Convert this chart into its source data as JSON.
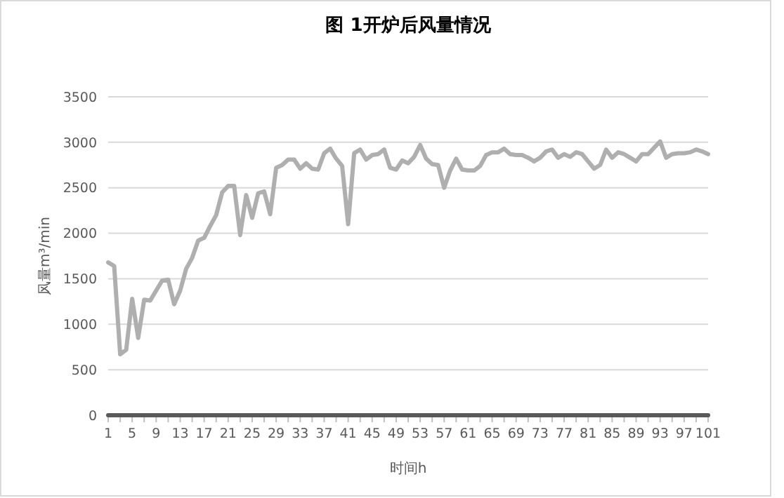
{
  "chart_data": {
    "type": "line",
    "title": "图 1开炉后风量情况",
    "xlabel": "时间h",
    "ylabel": "风量m³/min",
    "categories": [
      "1",
      null,
      null,
      null,
      "5",
      null,
      null,
      null,
      "9",
      null,
      null,
      null,
      "13",
      null,
      null,
      null,
      "17",
      null,
      null,
      null,
      "21",
      null,
      null,
      null,
      "25",
      null,
      null,
      null,
      "29",
      null,
      null,
      null,
      "33",
      null,
      null,
      null,
      "37",
      null,
      null,
      null,
      "41",
      null,
      null,
      null,
      "45",
      null,
      null,
      null,
      "49",
      null,
      null,
      null,
      "53",
      null,
      null,
      null,
      "57",
      null,
      null,
      null,
      "61",
      null,
      null,
      null,
      "65",
      null,
      null,
      null,
      "69",
      null,
      null,
      null,
      "73",
      null,
      null,
      null,
      "77",
      null,
      null,
      null,
      "81",
      null,
      null,
      null,
      "85",
      null,
      null,
      null,
      "89",
      null,
      null,
      null,
      "93",
      null,
      null,
      null,
      "97",
      null,
      null,
      null,
      "101"
    ],
    "series": [
      {
        "color": "#afafaf",
        "values": [
          1680,
          1640,
          670,
          720,
          1280,
          850,
          1270,
          1260,
          1370,
          1480,
          1490,
          1220,
          1370,
          1610,
          1730,
          1920,
          1950,
          2080,
          2200,
          2450,
          2520,
          2520,
          1980,
          2420,
          2170,
          2440,
          2460,
          2210,
          2720,
          2750,
          2810,
          2810,
          2710,
          2770,
          2710,
          2700,
          2880,
          2930,
          2820,
          2740,
          2100,
          2880,
          2920,
          2810,
          2860,
          2870,
          2920,
          2720,
          2700,
          2800,
          2770,
          2840,
          2970,
          2820,
          2760,
          2750,
          2500,
          2690,
          2820,
          2700,
          2690,
          2690,
          2740,
          2860,
          2890,
          2890,
          2930,
          2870,
          2860,
          2860,
          2830,
          2790,
          2830,
          2900,
          2920,
          2830,
          2870,
          2840,
          2890,
          2870,
          2790,
          2710,
          2750,
          2920,
          2830,
          2890,
          2870,
          2830,
          2790,
          2870,
          2870,
          2940,
          3010,
          2830,
          2870,
          2880,
          2880,
          2890,
          2920,
          2900,
          2870
        ]
      },
      {
        "color": "#595959",
        "values": [
          0,
          0,
          0,
          0,
          0,
          0,
          0,
          0,
          0,
          0,
          0,
          0,
          0,
          0,
          0,
          0,
          0,
          0,
          0,
          0,
          0,
          0,
          0,
          0,
          0,
          0,
          0,
          0,
          0,
          0,
          0,
          0,
          0,
          0,
          0,
          0,
          0,
          0,
          0,
          0,
          0,
          0,
          0,
          0,
          0,
          0,
          0,
          0,
          0,
          0,
          0,
          0,
          0,
          0,
          0,
          0,
          0,
          0,
          0,
          0,
          0,
          0,
          0,
          0,
          0,
          0,
          0,
          0,
          0,
          0,
          0,
          0,
          0,
          0,
          0,
          0,
          0,
          0,
          0,
          0,
          0,
          0,
          0,
          0,
          0,
          0,
          0,
          0,
          0,
          0,
          0,
          0,
          0,
          0,
          0,
          0,
          0,
          0,
          0,
          0,
          0
        ]
      }
    ],
    "ylim": [
      0,
      3500
    ],
    "yticks": [
      0,
      500,
      1000,
      1500,
      2000,
      2500,
      3000,
      3500
    ],
    "grid": "y",
    "marker": "none",
    "line_style": "solid"
  }
}
